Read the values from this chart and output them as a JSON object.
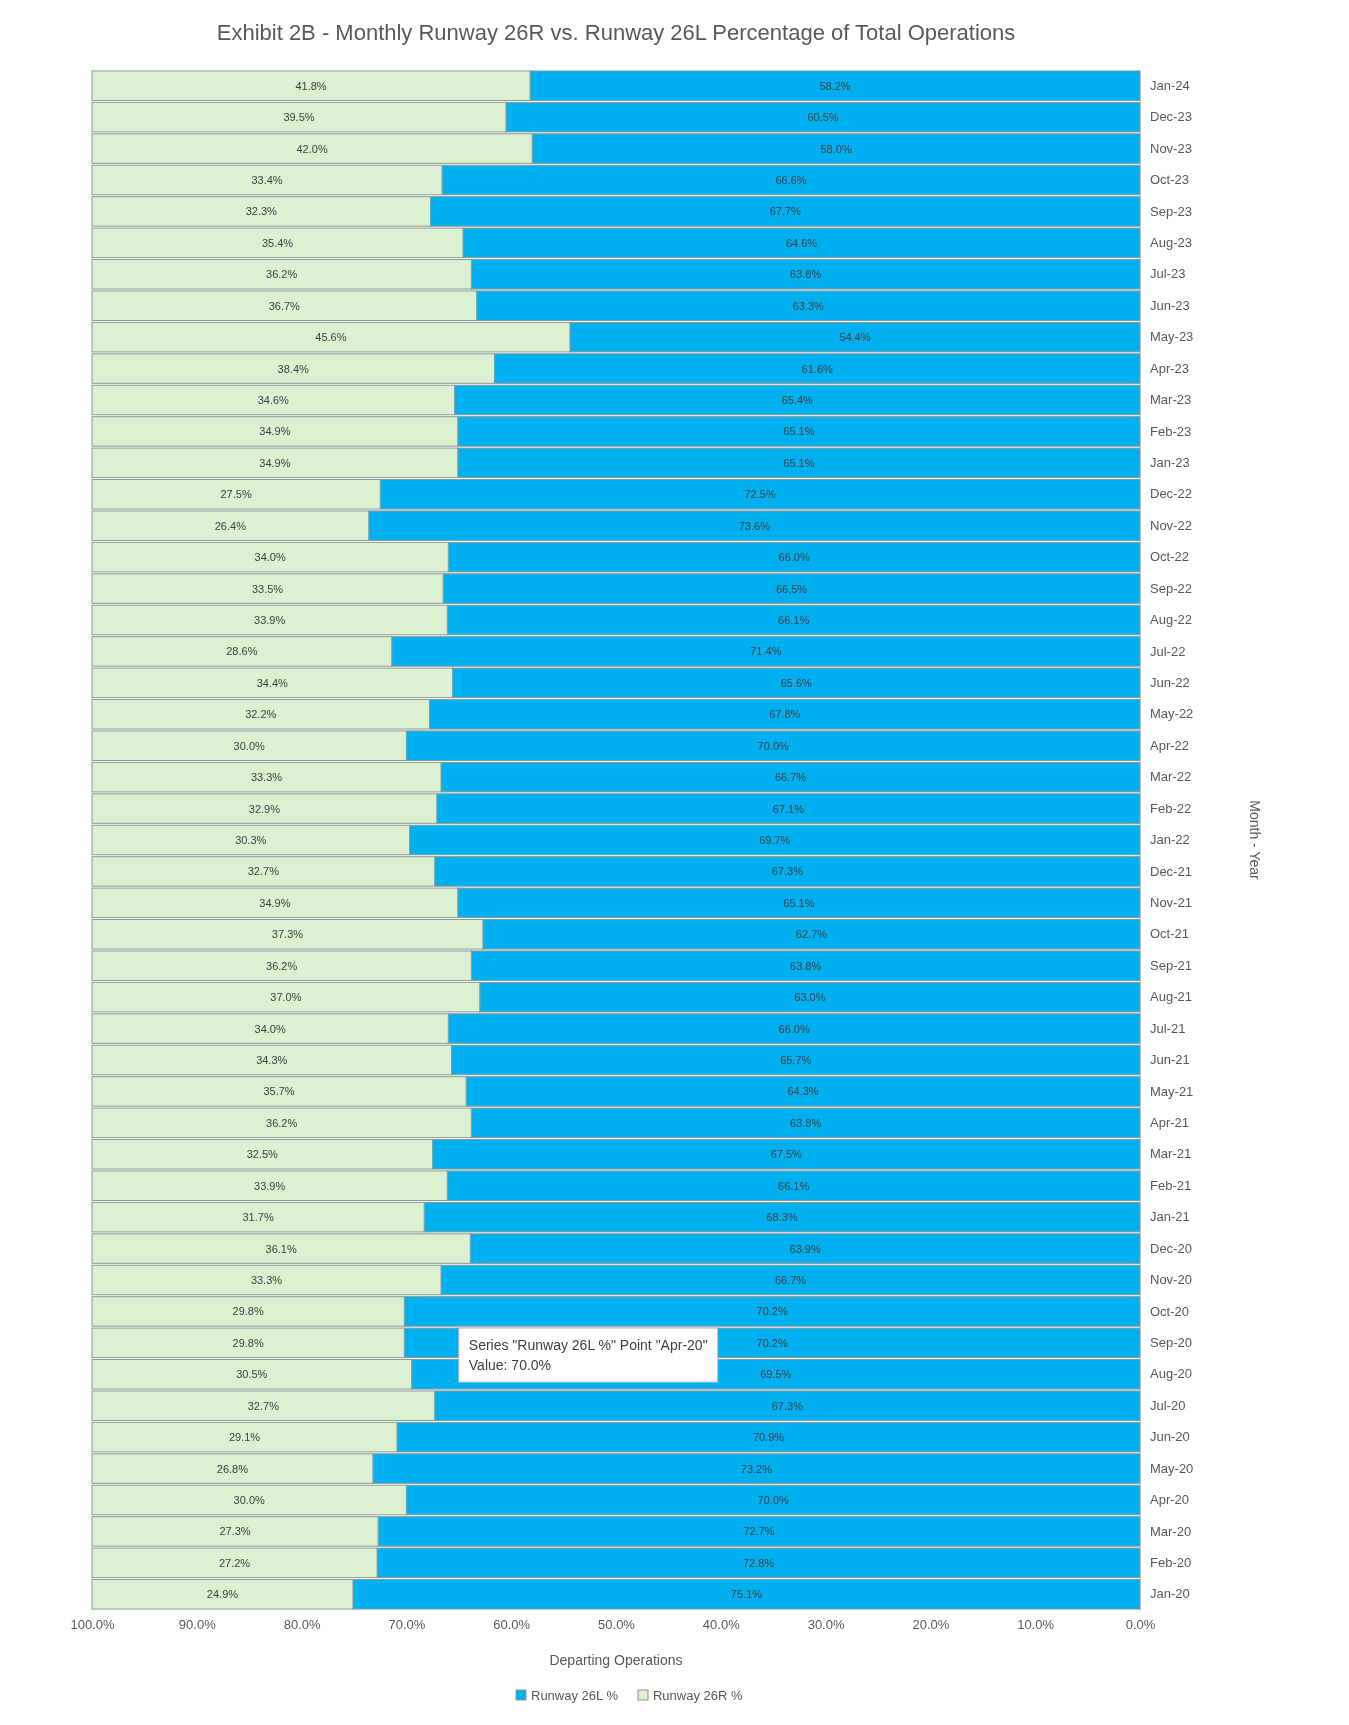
{
  "chart_data": {
    "type": "bar",
    "stacked": true,
    "orientation": "horizontal",
    "title": "Exhibit 2B - Monthly Runway 26R vs. Runway 26L Percentage of Total Operations",
    "xlabel": "Departing Operations",
    "ylabel": "Month - Year",
    "categories": [
      "Jan-24",
      "Dec-23",
      "Nov-23",
      "Oct-23",
      "Sep-23",
      "Aug-23",
      "Jul-23",
      "Jun-23",
      "May-23",
      "Apr-23",
      "Mar-23",
      "Feb-23",
      "Jan-23",
      "Dec-22",
      "Nov-22",
      "Oct-22",
      "Sep-22",
      "Aug-22",
      "Jul-22",
      "Jun-22",
      "May-22",
      "Apr-22",
      "Mar-22",
      "Feb-22",
      "Jan-22",
      "Dec-21",
      "Nov-21",
      "Oct-21",
      "Sep-21",
      "Aug-21",
      "Jul-21",
      "Jun-21",
      "May-21",
      "Apr-21",
      "Mar-21",
      "Feb-21",
      "Jan-21",
      "Dec-20",
      "Nov-20",
      "Oct-20",
      "Sep-20",
      "Aug-20",
      "Jul-20",
      "Jun-20",
      "May-20",
      "Apr-20",
      "Mar-20",
      "Feb-20",
      "Jan-20"
    ],
    "series": [
      {
        "name": "Runway 26L %",
        "color": "#00b0f0",
        "values": [
          58.2,
          60.5,
          58.0,
          66.6,
          67.7,
          64.6,
          63.8,
          63.3,
          54.4,
          61.6,
          65.4,
          65.1,
          65.1,
          72.5,
          73.6,
          66.0,
          66.5,
          66.1,
          71.4,
          65.6,
          67.8,
          70.0,
          66.7,
          67.1,
          69.7,
          67.3,
          65.1,
          62.7,
          63.8,
          63.0,
          66.0,
          65.7,
          64.3,
          63.8,
          67.5,
          66.1,
          68.3,
          63.9,
          66.7,
          70.2,
          70.2,
          69.5,
          67.3,
          70.9,
          73.2,
          70.0,
          72.7,
          72.8,
          75.1
        ],
        "value_labels": [
          "58.2%",
          "60.5%",
          "58.0%",
          "66.6%",
          "67.7%",
          "64.6%",
          "63.8%",
          "63.3%",
          "54.4%",
          "61.6%",
          "65.4%",
          "65.1%",
          "65.1%",
          "72.5%",
          "73.6%",
          "66.0%",
          "66.5%",
          "66.1%",
          "71.4%",
          "65.6%",
          "67.8%",
          "70.0%",
          "66.7%",
          "67.1%",
          "69.7%",
          "67.3%",
          "65.1%",
          "62.7%",
          "63.8%",
          "63.0%",
          "66.0%",
          "65.7%",
          "64.3%",
          "63.8%",
          "67.5%",
          "66.1%",
          "68.3%",
          "63.9%",
          "66.7%",
          "70.2%",
          "70.2%",
          "69.5%",
          "67.3%",
          "70.9%",
          "73.2%",
          "70.0%",
          "72.7%",
          "72.8%",
          "75.1%"
        ]
      },
      {
        "name": "Runway 26R %",
        "color": "#dcf0d2",
        "values": [
          41.8,
          39.5,
          42.0,
          33.4,
          32.3,
          35.4,
          36.2,
          36.7,
          45.6,
          38.4,
          34.6,
          34.9,
          34.9,
          27.5,
          26.4,
          34.0,
          33.5,
          33.9,
          28.6,
          34.4,
          32.2,
          30.0,
          33.3,
          32.9,
          30.3,
          32.7,
          34.9,
          37.3,
          36.2,
          37.0,
          34.0,
          34.3,
          35.7,
          36.2,
          32.5,
          33.9,
          31.7,
          36.1,
          33.3,
          29.8,
          29.8,
          30.5,
          32.7,
          29.1,
          26.8,
          30.0,
          27.3,
          27.2,
          24.9
        ],
        "value_labels": [
          "41.8%",
          "39.5%",
          "42.0%",
          "33.4%",
          "32.3%",
          "35.4%",
          "36.2%",
          "36.7%",
          "45.6%",
          "38.4%",
          "34.6%",
          "34.9%",
          "34.9%",
          "27.5%",
          "26.4%",
          "34.0%",
          "33.5%",
          "33.9%",
          "28.6%",
          "34.4%",
          "32.2%",
          "30.0%",
          "33.3%",
          "32.9%",
          "30.3%",
          "32.7%",
          "34.9%",
          "37.3%",
          "36.2%",
          "37.0%",
          "34.0%",
          "34.3%",
          "35.7%",
          "36.2%",
          "32.5%",
          "33.9%",
          "31.7%",
          "36.1%",
          "33.3%",
          "29.8%",
          "29.8%",
          "30.5%",
          "32.7%",
          "29.1%",
          "26.8%",
          "30.0%",
          "27.3%",
          "27.2%",
          "24.9%"
        ]
      }
    ],
    "xlim": [
      100,
      0
    ],
    "xticks": [
      {
        "value": 0,
        "label": "0.0%"
      },
      {
        "value": 10,
        "label": "10.0%"
      },
      {
        "value": 20,
        "label": "20.0%"
      },
      {
        "value": 30,
        "label": "30.0%"
      },
      {
        "value": 40,
        "label": "40.0%"
      },
      {
        "value": 50,
        "label": "50.0%"
      },
      {
        "value": 60,
        "label": "60.0%"
      },
      {
        "value": 70,
        "label": "70.0%"
      },
      {
        "value": 80,
        "label": "80.0%"
      },
      {
        "value": 90,
        "label": "90.0%"
      },
      {
        "value": 100,
        "label": "100.0%"
      }
    ],
    "legend": "bottom",
    "annotations": [
      "Series \"Runway 26L %\" Point \"Apr-20\"\nValue: 70.0%"
    ]
  }
}
